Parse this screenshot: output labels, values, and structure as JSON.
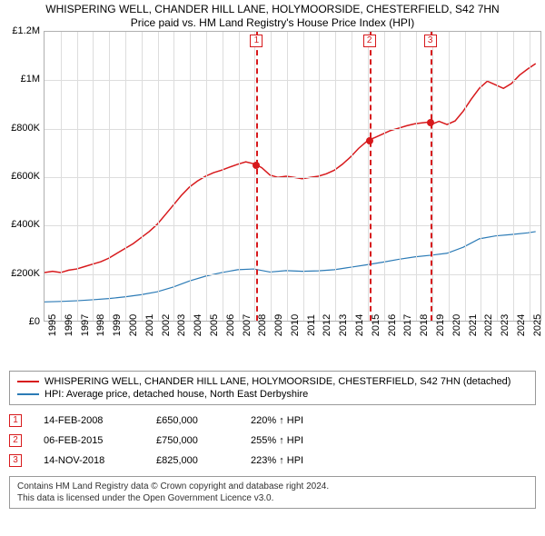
{
  "title": {
    "line1": "WHISPERING WELL, CHANDER HILL LANE, HOLYMOORSIDE, CHESTERFIELD, S42 7HN",
    "line2": "Price paid vs. HM Land Registry's House Price Index (HPI)"
  },
  "chart": {
    "type": "line",
    "background_color": "#ffffff",
    "grid_color": "#dddddd",
    "border_color": "#b0b0b0",
    "ylim": [
      0,
      1200000
    ],
    "ytick_step": 200000,
    "y_ticks": [
      {
        "v": 0,
        "label": "£0"
      },
      {
        "v": 200000,
        "label": "£200K"
      },
      {
        "v": 400000,
        "label": "£400K"
      },
      {
        "v": 600000,
        "label": "£600K"
      },
      {
        "v": 800000,
        "label": "£800K"
      },
      {
        "v": 1000000,
        "label": "£1M"
      },
      {
        "v": 1200000,
        "label": "£1.2M"
      }
    ],
    "xlim": [
      1995,
      2025.8
    ],
    "x_ticks": [
      1995,
      1996,
      1997,
      1998,
      1999,
      2000,
      2001,
      2002,
      2003,
      2004,
      2005,
      2006,
      2007,
      2008,
      2009,
      2010,
      2011,
      2012,
      2013,
      2014,
      2015,
      2016,
      2017,
      2018,
      2019,
      2020,
      2021,
      2022,
      2023,
      2024,
      2025
    ],
    "series": [
      {
        "id": "subject",
        "label": "WHISPERING WELL, CHANDER HILL LANE, HOLYMOORSIDE, CHESTERFIELD, S42 7HN (detached)",
        "color": "#d7191c",
        "line_width": 1.5,
        "points": [
          [
            1995.0,
            200000
          ],
          [
            1995.5,
            205000
          ],
          [
            1996.0,
            200000
          ],
          [
            1996.5,
            210000
          ],
          [
            1997.0,
            215000
          ],
          [
            1997.5,
            225000
          ],
          [
            1998.0,
            235000
          ],
          [
            1998.5,
            245000
          ],
          [
            1999.0,
            260000
          ],
          [
            1999.5,
            280000
          ],
          [
            2000.0,
            300000
          ],
          [
            2000.5,
            320000
          ],
          [
            2001.0,
            345000
          ],
          [
            2001.5,
            370000
          ],
          [
            2002.0,
            400000
          ],
          [
            2002.5,
            440000
          ],
          [
            2003.0,
            480000
          ],
          [
            2003.5,
            520000
          ],
          [
            2004.0,
            555000
          ],
          [
            2004.5,
            580000
          ],
          [
            2005.0,
            600000
          ],
          [
            2005.5,
            615000
          ],
          [
            2006.0,
            625000
          ],
          [
            2006.5,
            638000
          ],
          [
            2007.0,
            650000
          ],
          [
            2007.5,
            660000
          ],
          [
            2008.12,
            650000
          ],
          [
            2008.5,
            635000
          ],
          [
            2009.0,
            605000
          ],
          [
            2009.5,
            595000
          ],
          [
            2010.0,
            600000
          ],
          [
            2010.5,
            595000
          ],
          [
            2011.0,
            590000
          ],
          [
            2011.5,
            595000
          ],
          [
            2012.0,
            600000
          ],
          [
            2012.5,
            610000
          ],
          [
            2013.0,
            625000
          ],
          [
            2013.5,
            650000
          ],
          [
            2014.0,
            680000
          ],
          [
            2014.5,
            715000
          ],
          [
            2015.1,
            750000
          ],
          [
            2015.5,
            760000
          ],
          [
            2016.0,
            775000
          ],
          [
            2016.5,
            790000
          ],
          [
            2017.0,
            800000
          ],
          [
            2017.5,
            810000
          ],
          [
            2018.0,
            818000
          ],
          [
            2018.5,
            822000
          ],
          [
            2018.87,
            825000
          ],
          [
            2019.0,
            815000
          ],
          [
            2019.5,
            828000
          ],
          [
            2020.0,
            815000
          ],
          [
            2020.5,
            830000
          ],
          [
            2021.0,
            870000
          ],
          [
            2021.5,
            920000
          ],
          [
            2022.0,
            965000
          ],
          [
            2022.5,
            995000
          ],
          [
            2023.0,
            980000
          ],
          [
            2023.5,
            965000
          ],
          [
            2024.0,
            985000
          ],
          [
            2024.5,
            1020000
          ],
          [
            2025.0,
            1045000
          ],
          [
            2025.5,
            1068000
          ]
        ]
      },
      {
        "id": "hpi",
        "label": "HPI: Average price, detached house, North East Derbyshire",
        "color": "#2c7bb6",
        "line_width": 1.2,
        "points": [
          [
            1995.0,
            78000
          ],
          [
            1996.0,
            80000
          ],
          [
            1997.0,
            83000
          ],
          [
            1998.0,
            87000
          ],
          [
            1999.0,
            92000
          ],
          [
            2000.0,
            99000
          ],
          [
            2001.0,
            108000
          ],
          [
            2002.0,
            120000
          ],
          [
            2003.0,
            140000
          ],
          [
            2004.0,
            165000
          ],
          [
            2005.0,
            185000
          ],
          [
            2006.0,
            200000
          ],
          [
            2007.0,
            212000
          ],
          [
            2008.0,
            215000
          ],
          [
            2009.0,
            202000
          ],
          [
            2010.0,
            208000
          ],
          [
            2011.0,
            205000
          ],
          [
            2012.0,
            207000
          ],
          [
            2013.0,
            212000
          ],
          [
            2014.0,
            222000
          ],
          [
            2015.0,
            232000
          ],
          [
            2016.0,
            243000
          ],
          [
            2017.0,
            255000
          ],
          [
            2018.0,
            265000
          ],
          [
            2019.0,
            272000
          ],
          [
            2020.0,
            280000
          ],
          [
            2021.0,
            305000
          ],
          [
            2022.0,
            340000
          ],
          [
            2023.0,
            352000
          ],
          [
            2024.0,
            358000
          ],
          [
            2025.0,
            365000
          ],
          [
            2025.5,
            370000
          ]
        ]
      }
    ],
    "events": [
      {
        "n": "1",
        "year": 2008.12,
        "price": 650000,
        "date": "14-FEB-2008",
        "price_fmt": "£650,000",
        "pct": "220%",
        "vs": "HPI"
      },
      {
        "n": "2",
        "year": 2015.1,
        "price": 750000,
        "date": "06-FEB-2015",
        "price_fmt": "£750,000",
        "pct": "255%",
        "vs": "HPI"
      },
      {
        "n": "3",
        "year": 2018.87,
        "price": 825000,
        "date": "14-NOV-2018",
        "price_fmt": "£825,000",
        "pct": "223%",
        "vs": "HPI"
      }
    ],
    "label_fontsize": 11,
    "title_fontsize": 12
  },
  "legend": {
    "items": [
      {
        "color": "#d7191c",
        "text": "WHISPERING WELL, CHANDER HILL LANE, HOLYMOORSIDE, CHESTERFIELD, S42 7HN (detached)"
      },
      {
        "color": "#2c7bb6",
        "text": "HPI: Average price, detached house, North East Derbyshire"
      }
    ]
  },
  "footer": {
    "line1": "Contains HM Land Registry data © Crown copyright and database right 2024.",
    "line2": "This data is licensed under the Open Government Licence v3.0."
  },
  "arrow_up": "↑"
}
